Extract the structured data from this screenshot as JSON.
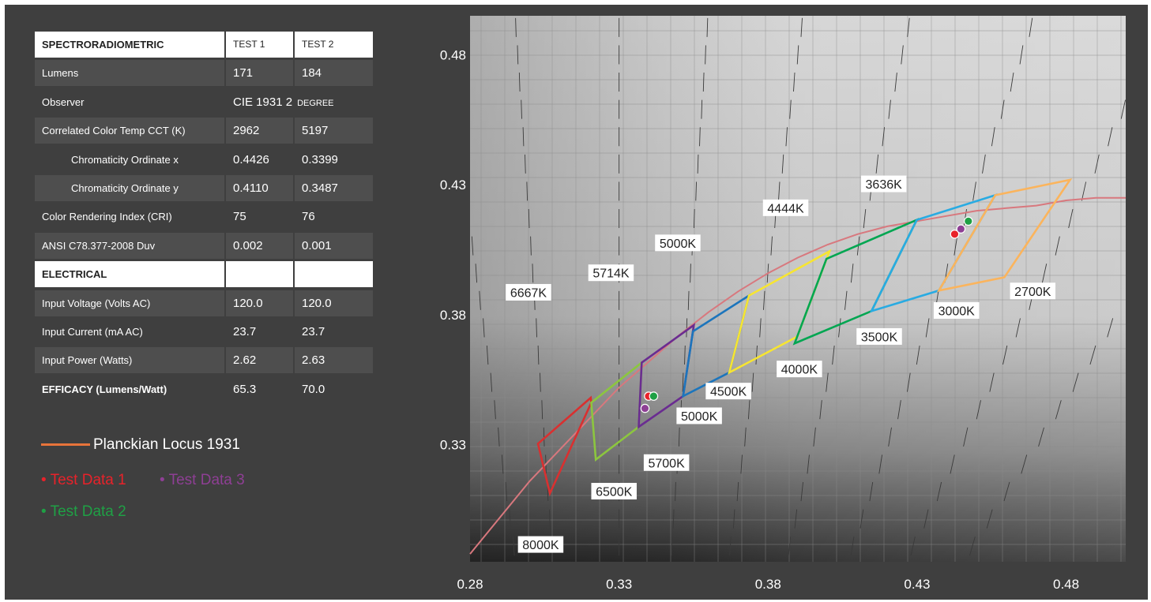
{
  "table": {
    "header": {
      "label": "SPECTRORADIOMETRIC",
      "col1": "TEST 1",
      "col2": "TEST 2"
    },
    "rows": [
      {
        "label": "Lumens",
        "v1": "171",
        "v2": "184"
      },
      {
        "label": "Observer",
        "v1": "CIE 1931 2",
        "v1_suffix": "DEGREE",
        "v2": ""
      },
      {
        "label": "Correlated Color Temp CCT (K)",
        "v1": "2962",
        "v2": "5197"
      },
      {
        "label": "Chromaticity Ordinate x",
        "v1": "0.4426",
        "v2": "0.3399"
      },
      {
        "label": "Chromaticity Ordinate y",
        "v1": "0.4110",
        "v2": "0.3487"
      },
      {
        "label": "Color Rendering Index (CRI)",
        "v1": "75",
        "v2": "76"
      },
      {
        "label": "ANSI C78.377-2008 Duv",
        "v1": "0.002",
        "v2": "0.001"
      }
    ],
    "electrical_header": {
      "label": "ELECTRICAL",
      "col1": "",
      "col2": ""
    },
    "electrical_rows": [
      {
        "label": "Input Voltage (Volts AC)",
        "v1": "120.0",
        "v2": "120.0"
      },
      {
        "label": "Input Current (mA AC)",
        "v1": "23.7",
        "v2": "23.7"
      },
      {
        "label": "Input Power (Watts)",
        "v1": "2.62",
        "v2": "2.63"
      },
      {
        "label": "EFFICACY (Lumens/Watt)",
        "v1": "65.3",
        "v2": "70.0"
      }
    ]
  },
  "legend": {
    "planckian": "Planckian Locus 1931",
    "test1": "Test Data 1",
    "test2": "Test Data 2",
    "test3": "Test Data 3"
  },
  "colors": {
    "planckian_line": "#d8787e",
    "planckian_legend": "#e8743a",
    "test1": "#e8222a",
    "test2": "#1fa045",
    "test3": "#8e3f94",
    "quad_6500K": "#d93030",
    "quad_5700K": "#8cc63f",
    "quad_5000K": "#6a2c91",
    "quad_4500K": "#1c75bc",
    "quad_4000K": "#f7e531",
    "quad_3500K": "#00a651",
    "quad_3000K": "#29abe2",
    "quad_2700K": "#fbb45c"
  },
  "chart_data": {
    "type": "scatter",
    "title": "",
    "xlabel": "",
    "ylabel": "",
    "xlim": [
      0.28,
      0.5
    ],
    "ylim": [
      0.285,
      0.495
    ],
    "x_ticks": [
      "0.28",
      "0.33",
      "0.38",
      "0.43",
      "0.48"
    ],
    "y_ticks": [
      "0.33",
      "0.38",
      "0.43",
      "0.48"
    ],
    "x_tick_values": [
      0.28,
      0.33,
      0.38,
      0.43,
      0.48
    ],
    "y_tick_values": [
      0.33,
      0.38,
      0.43,
      0.48
    ],
    "grid": true,
    "planckian_locus": [
      [
        0.28,
        0.288
      ],
      [
        0.29,
        0.302
      ],
      [
        0.3,
        0.316
      ],
      [
        0.31,
        0.328
      ],
      [
        0.32,
        0.34
      ],
      [
        0.33,
        0.352
      ],
      [
        0.34,
        0.362
      ],
      [
        0.35,
        0.372
      ],
      [
        0.36,
        0.381
      ],
      [
        0.37,
        0.389
      ],
      [
        0.38,
        0.396
      ],
      [
        0.39,
        0.402
      ],
      [
        0.4,
        0.407
      ],
      [
        0.41,
        0.411
      ],
      [
        0.42,
        0.414
      ],
      [
        0.43,
        0.416
      ],
      [
        0.44,
        0.418
      ],
      [
        0.45,
        0.42
      ],
      [
        0.46,
        0.421
      ],
      [
        0.47,
        0.422
      ],
      [
        0.48,
        0.424
      ],
      [
        0.49,
        0.425
      ],
      [
        0.5,
        0.425
      ]
    ],
    "quadrangles": [
      {
        "name": "6500K",
        "points": [
          [
            0.3028,
            0.3304
          ],
          [
            0.3205,
            0.3481
          ],
          [
            0.3207,
            0.3462
          ],
          [
            0.3068,
            0.3113
          ]
        ]
      },
      {
        "name": "5700K",
        "points": [
          [
            0.3207,
            0.3462
          ],
          [
            0.3376,
            0.3616
          ],
          [
            0.3366,
            0.3369
          ],
          [
            0.3222,
            0.3243
          ]
        ]
      },
      {
        "name": "5000K",
        "points": [
          [
            0.3376,
            0.3616
          ],
          [
            0.3551,
            0.376
          ],
          [
            0.3515,
            0.3487
          ],
          [
            0.3366,
            0.3369
          ]
        ]
      },
      {
        "name": "4500K",
        "points": [
          [
            0.3548,
            0.3736
          ],
          [
            0.3736,
            0.3874
          ],
          [
            0.367,
            0.3578
          ],
          [
            0.3515,
            0.3487
          ]
        ]
      },
      {
        "name": "4000K",
        "points": [
          [
            0.3736,
            0.3874
          ],
          [
            0.4006,
            0.4044
          ],
          [
            0.3898,
            0.3716
          ],
          [
            0.367,
            0.3578
          ]
        ]
      },
      {
        "name": "3500K",
        "points": [
          [
            0.3996,
            0.4015
          ],
          [
            0.4299,
            0.4165
          ],
          [
            0.4147,
            0.3814
          ],
          [
            0.3889,
            0.369
          ]
        ]
      },
      {
        "name": "3000K",
        "points": [
          [
            0.4299,
            0.4165
          ],
          [
            0.4562,
            0.426
          ],
          [
            0.4373,
            0.3893
          ],
          [
            0.4147,
            0.3814
          ]
        ]
      },
      {
        "name": "2700K",
        "points": [
          [
            0.4562,
            0.426
          ],
          [
            0.4813,
            0.4319
          ],
          [
            0.4593,
            0.3944
          ],
          [
            0.4373,
            0.3893
          ]
        ]
      }
    ],
    "quad_labels": [
      {
        "text": "6500K",
        "x": 0.3283,
        "y": 0.312
      },
      {
        "text": "5700K",
        "x": 0.3459,
        "y": 0.323
      },
      {
        "text": "5000K",
        "x": 0.3569,
        "y": 0.341
      },
      {
        "text": "4500K",
        "x": 0.3667,
        "y": 0.3505
      },
      {
        "text": "4000K",
        "x": 0.3905,
        "y": 0.359
      },
      {
        "text": "3500K",
        "x": 0.4173,
        "y": 0.3715
      },
      {
        "text": "3000K",
        "x": 0.4432,
        "y": 0.3815
      },
      {
        "text": "2700K",
        "x": 0.4688,
        "y": 0.389
      }
    ],
    "cct_labels": [
      {
        "text": "8000K",
        "x": 0.3037,
        "y": 0.2915
      },
      {
        "text": "6667K",
        "x": 0.2996,
        "y": 0.3885
      },
      {
        "text": "5714K",
        "x": 0.3273,
        "y": 0.396
      },
      {
        "text": "5000K",
        "x": 0.3497,
        "y": 0.4075
      },
      {
        "text": "4444K",
        "x": 0.3859,
        "y": 0.421
      },
      {
        "text": "3636K",
        "x": 0.4188,
        "y": 0.4302
      }
    ],
    "series": [
      {
        "name": "Test Data 1",
        "points": [
          [
            0.3399,
            0.3487
          ],
          [
            0.4426,
            0.411
          ]
        ]
      },
      {
        "name": "Test Data 2",
        "points": [
          [
            0.3416,
            0.3487
          ],
          [
            0.4472,
            0.416
          ]
        ]
      },
      {
        "name": "Test Data 3",
        "points": [
          [
            0.3387,
            0.344
          ],
          [
            0.4447,
            0.413
          ]
        ]
      }
    ]
  }
}
